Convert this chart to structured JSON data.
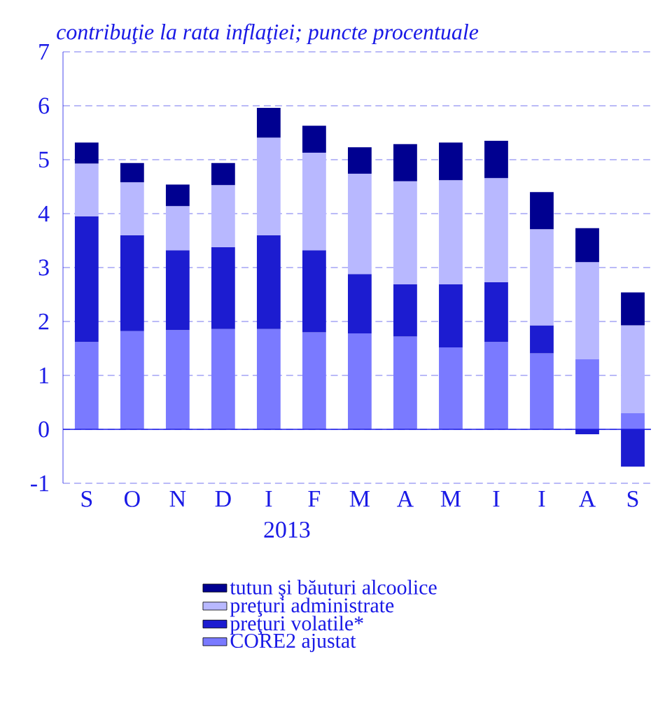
{
  "chart_data": {
    "type": "bar",
    "stacked": true,
    "title": "*contribuţie la rata inflaţiei; puncte procentuale*",
    "categories": [
      "S",
      "O",
      "N",
      "D",
      "I",
      "F",
      "M",
      "A",
      "M",
      "I",
      "I",
      "A",
      "S"
    ],
    "annotations": [
      "2013"
    ],
    "series": [
      {
        "name": "CORE2 ajustat",
        "color": "#7a7aff",
        "values": [
          1.62,
          1.82,
          1.84,
          1.86,
          1.86,
          1.8,
          1.78,
          1.72,
          1.52,
          1.62,
          1.41,
          1.3,
          0.3
        ]
      },
      {
        "name": "preţuri volatile*",
        "color": "#1c1cd0",
        "values": [
          2.33,
          1.78,
          1.48,
          1.52,
          1.74,
          1.52,
          1.1,
          0.97,
          1.17,
          1.11,
          0.52,
          -0.09,
          -0.69
        ]
      },
      {
        "name": "preţuri administrate",
        "color": "#b8b8ff",
        "values": [
          0.98,
          0.98,
          0.82,
          1.15,
          1.81,
          1.81,
          1.86,
          1.91,
          1.93,
          1.93,
          1.78,
          1.8,
          1.63
        ]
      },
      {
        "name": "tutun şi băuturi alcoolice",
        "color": "#000090",
        "values": [
          0.39,
          0.36,
          0.4,
          0.41,
          0.55,
          0.5,
          0.49,
          0.69,
          0.7,
          0.69,
          0.69,
          0.63,
          0.61
        ]
      }
    ],
    "ylim": [
      -1,
      7
    ],
    "yticks": [
      -1,
      0,
      1,
      2,
      3,
      4,
      5,
      6,
      7
    ],
    "grid": "y",
    "legend": "bottom",
    "ref_lines": [
      {
        "axis": "y",
        "value": 0,
        "color": "#1a1ae6"
      }
    ]
  }
}
